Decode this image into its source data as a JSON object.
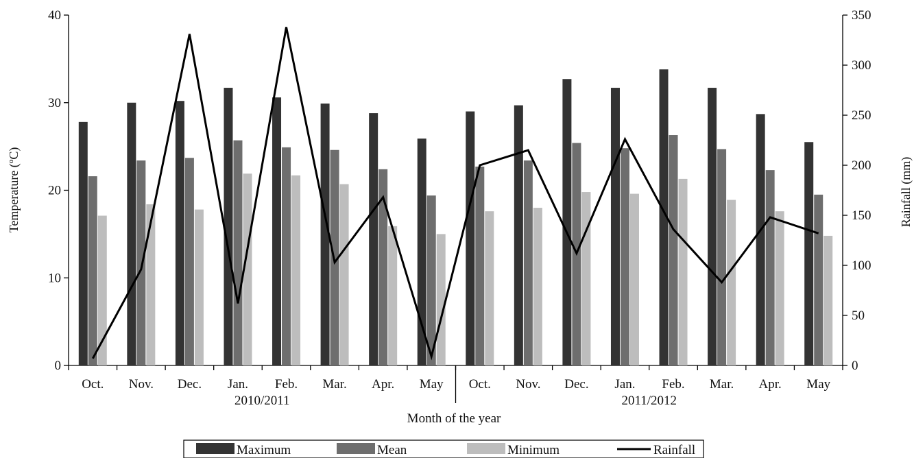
{
  "chart_data": {
    "type": "bar",
    "xlabel": "Month of the year",
    "ylabel": "Temperature (ºC)",
    "y2label": "Rainfall (mm)",
    "ylim": [
      0,
      40
    ],
    "y2lim": [
      0,
      350
    ],
    "yticks": [
      0,
      10,
      20,
      30,
      40
    ],
    "y2ticks": [
      0,
      50,
      100,
      150,
      200,
      250,
      300,
      350
    ],
    "grid": false,
    "legend_position": "bottom",
    "categories": [
      "Oct.",
      "Nov.",
      "Dec.",
      "Jan.",
      "Feb.",
      "Mar.",
      "Apr.",
      "May",
      "Oct.",
      "Nov.",
      "Dec.",
      "Jan.",
      "Feb.",
      "Mar.",
      "Apr.",
      "May"
    ],
    "groups": [
      {
        "label": "2010/2011",
        "categories_count": 8
      },
      {
        "label": "2011/2012",
        "categories_count": 8
      }
    ],
    "series": [
      {
        "name": "Maximum",
        "type": "bar",
        "axis": "left",
        "color": "#333333",
        "values": [
          27.8,
          30.0,
          30.2,
          31.7,
          30.6,
          29.9,
          28.8,
          25.9,
          29.0,
          29.7,
          32.7,
          31.7,
          33.8,
          31.7,
          28.7,
          25.5
        ]
      },
      {
        "name": "Mean",
        "type": "bar",
        "axis": "left",
        "color": "#6e6e6e",
        "values": [
          21.6,
          23.4,
          23.7,
          25.7,
          24.9,
          24.6,
          22.4,
          19.4,
          22.7,
          23.4,
          25.4,
          24.8,
          26.3,
          24.7,
          22.3,
          19.5
        ]
      },
      {
        "name": "Minimum",
        "type": "bar",
        "axis": "left",
        "color": "#bdbdbd",
        "values": [
          17.1,
          18.4,
          17.8,
          21.9,
          21.7,
          20.7,
          15.9,
          15.0,
          17.6,
          18.0,
          19.8,
          19.6,
          21.3,
          18.9,
          17.6,
          14.8
        ]
      },
      {
        "name": "Rainfall",
        "type": "line",
        "axis": "right",
        "color": "#000000",
        "values": [
          7,
          96,
          331,
          62,
          338,
          103,
          168,
          9,
          200,
          215,
          112,
          226,
          136,
          83,
          148,
          132
        ]
      }
    ]
  }
}
